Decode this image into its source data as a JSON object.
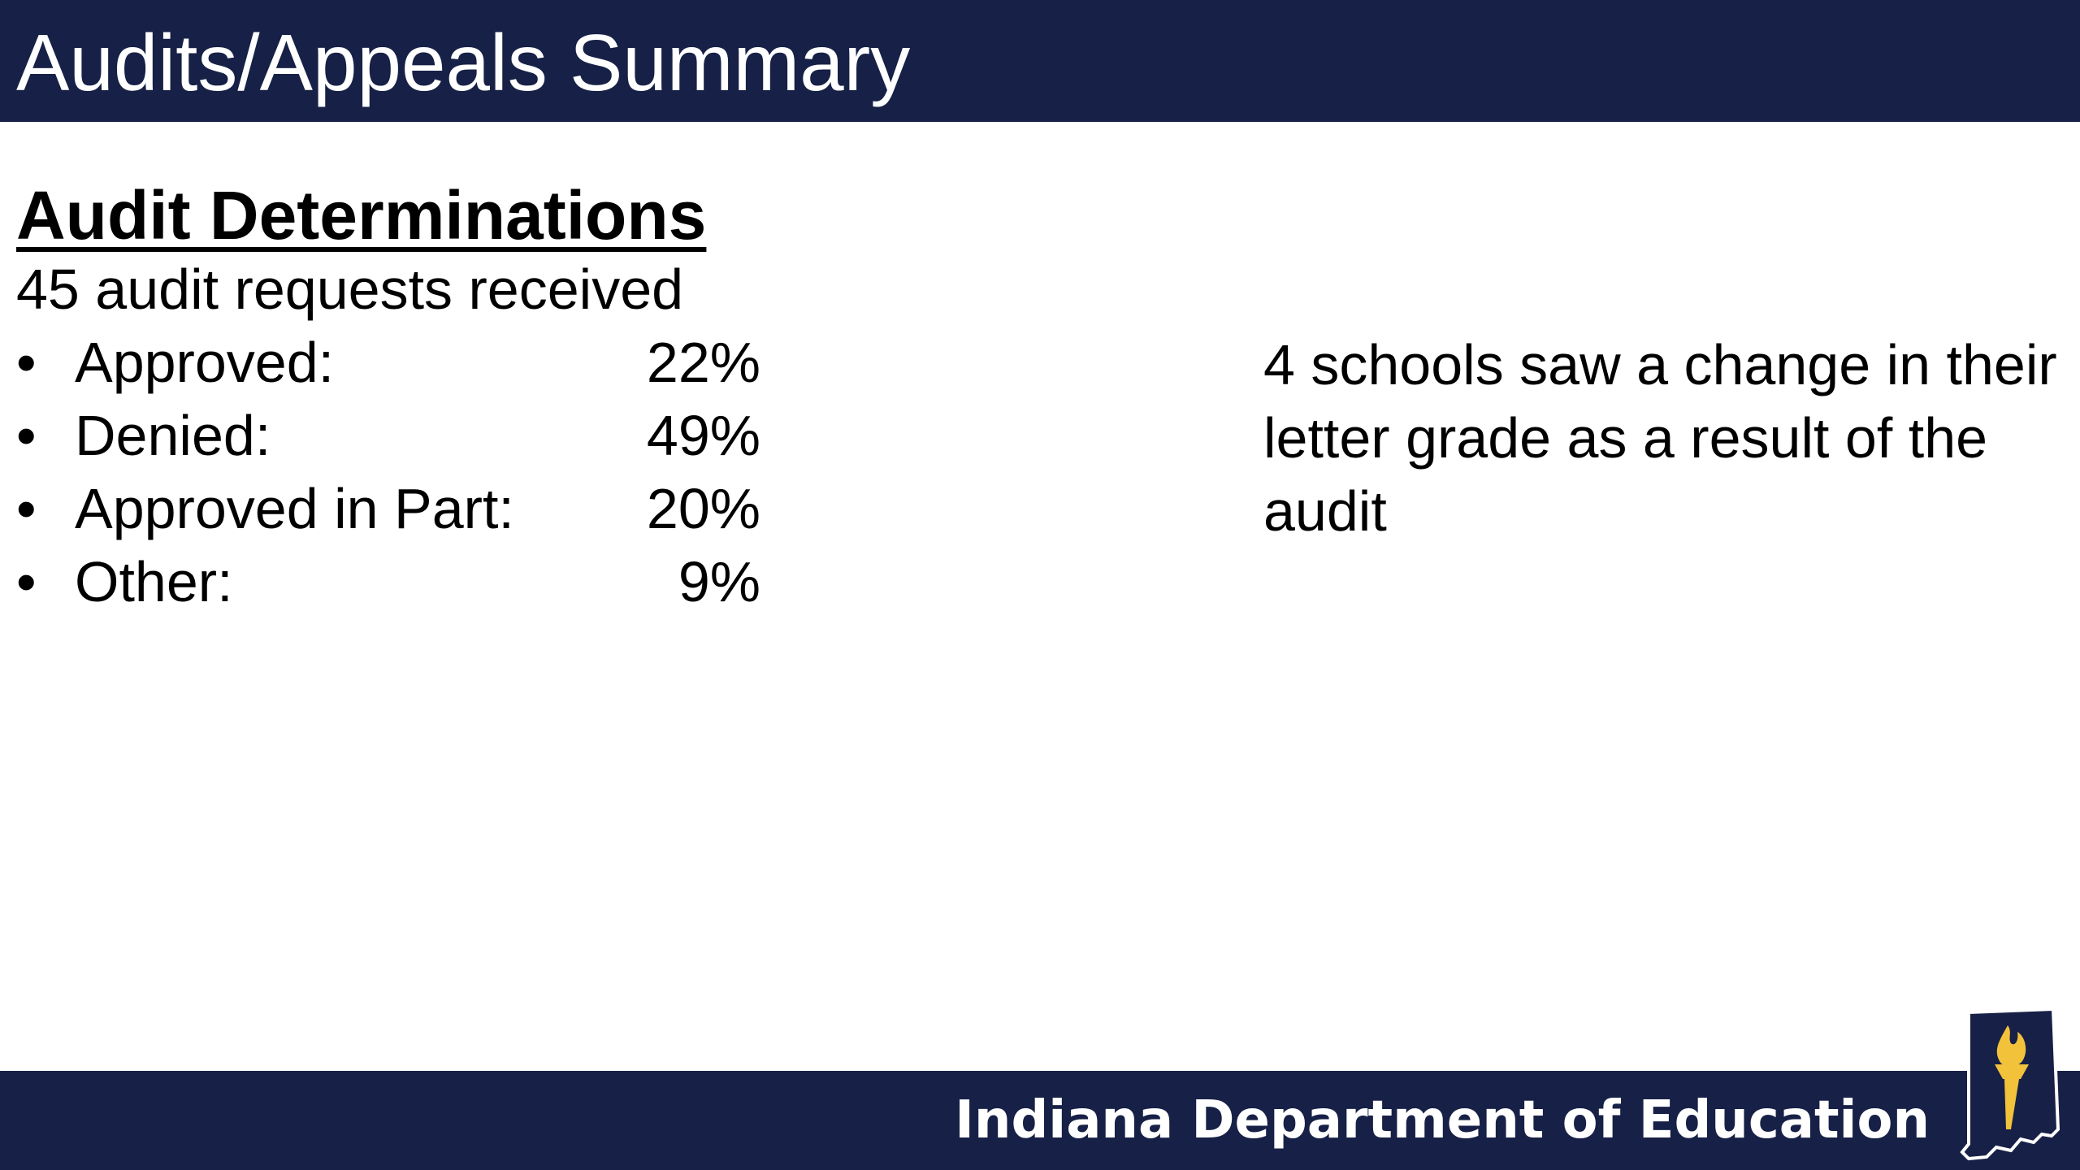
{
  "header": {
    "title": "Audits/Appeals Summary"
  },
  "content": {
    "heading": "Audit Determinations",
    "subtext": "45 audit requests received",
    "items": [
      {
        "label": "Approved:",
        "value": "22%"
      },
      {
        "label": "Denied:",
        "value": "49%"
      },
      {
        "label": "Approved in Part:",
        "value": "20%"
      },
      {
        "label": "Other:",
        "value": "9%"
      }
    ],
    "bullet": "•",
    "note": "4 schools saw a change in their letter grade as a result of the audit"
  },
  "footer": {
    "organization": "Indiana Department of Education",
    "logo_icon": "indiana-torch-logo-icon"
  },
  "colors": {
    "navy": "#172046",
    "gold": "#F2C23A",
    "white": "#ffffff",
    "text": "#000000"
  }
}
